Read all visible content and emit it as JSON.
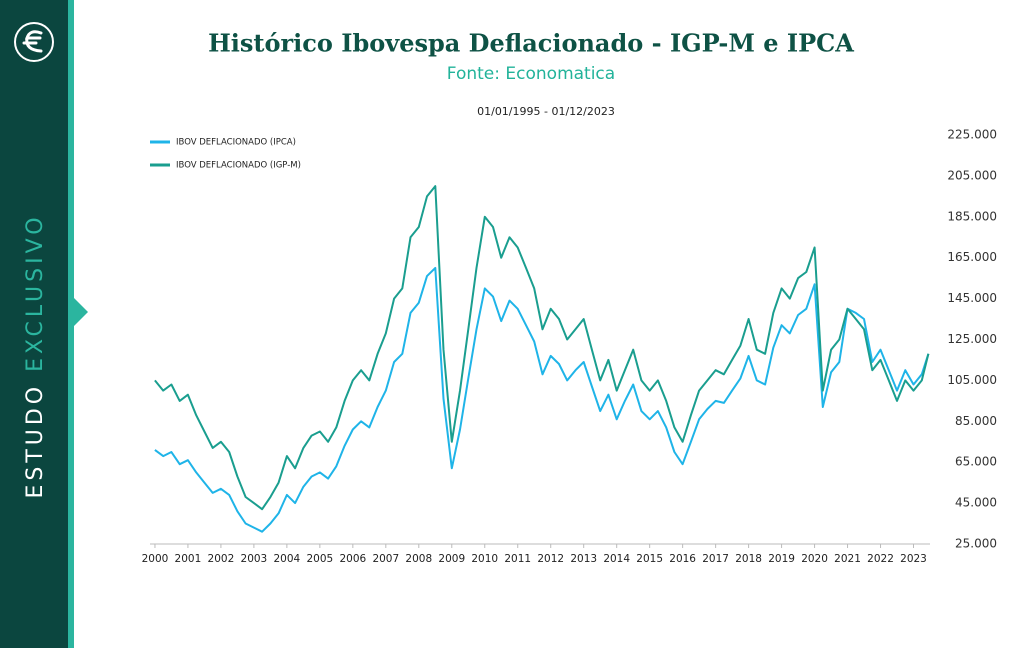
{
  "sidebar": {
    "word_1": "ESTUDO",
    "word_2": "EXCLUSIVO"
  },
  "chart_data": {
    "type": "line",
    "title": "Histórico Ibovespa Deflacionado - IGP-M e IPCA",
    "subtitle": "Fonte: Economatica",
    "period": "01/01/1995 - 01/12/2023",
    "x": [
      2000,
      2000.25,
      2000.5,
      2000.75,
      2001,
      2001.25,
      2001.5,
      2001.75,
      2002,
      2002.25,
      2002.5,
      2002.75,
      2003,
      2003.25,
      2003.5,
      2003.75,
      2004,
      2004.25,
      2004.5,
      2004.75,
      2005,
      2005.25,
      2005.5,
      2005.75,
      2006,
      2006.25,
      2006.5,
      2006.75,
      2007,
      2007.25,
      2007.5,
      2007.75,
      2008,
      2008.25,
      2008.5,
      2008.75,
      2009,
      2009.25,
      2009.5,
      2009.75,
      2010,
      2010.25,
      2010.5,
      2010.75,
      2011,
      2011.25,
      2011.5,
      2011.75,
      2012,
      2012.25,
      2012.5,
      2012.75,
      2013,
      2013.25,
      2013.5,
      2013.75,
      2014,
      2014.25,
      2014.5,
      2014.75,
      2015,
      2015.25,
      2015.5,
      2015.75,
      2016,
      2016.25,
      2016.5,
      2016.75,
      2017,
      2017.25,
      2017.5,
      2017.75,
      2018,
      2018.25,
      2018.5,
      2018.75,
      2019,
      2019.25,
      2019.5,
      2019.75,
      2020,
      2020.25,
      2020.5,
      2020.75,
      2021,
      2021.25,
      2021.5,
      2021.75,
      2022,
      2022.25,
      2022.5,
      2022.75,
      2023,
      2023.25,
      2023.45
    ],
    "series": [
      {
        "name": "IBOV DEFLACIONADO (IPCA)",
        "color": "#1fb4e8",
        "values": [
          71000,
          68000,
          70000,
          64000,
          66000,
          60000,
          55000,
          50000,
          52000,
          49000,
          41000,
          35000,
          33000,
          31000,
          35000,
          40000,
          49000,
          45000,
          53000,
          58000,
          60000,
          57000,
          63000,
          73000,
          81000,
          85000,
          82000,
          92000,
          100000,
          114000,
          118000,
          138000,
          143000,
          156000,
          160000,
          96000,
          62000,
          81000,
          106000,
          130000,
          150000,
          146000,
          134000,
          144000,
          140000,
          132000,
          124000,
          108000,
          117000,
          113000,
          105000,
          110000,
          114000,
          102000,
          90000,
          98000,
          86000,
          95000,
          103000,
          90000,
          86000,
          90000,
          82000,
          70000,
          64000,
          75000,
          86000,
          91000,
          95000,
          94000,
          100000,
          106000,
          117000,
          105000,
          103000,
          121000,
          132000,
          128000,
          137000,
          140000,
          152000,
          92000,
          109000,
          114000,
          140000,
          138000,
          135000,
          114000,
          120000,
          110000,
          100000,
          110000,
          103000,
          108000,
          118000
        ]
      },
      {
        "name": "IBOV DEFLACIONADO (IGP-M)",
        "color": "#1a9e8f",
        "values": [
          105000,
          100000,
          103000,
          95000,
          98000,
          88000,
          80000,
          72000,
          75000,
          70000,
          58000,
          48000,
          45000,
          42000,
          48000,
          55000,
          68000,
          62000,
          72000,
          78000,
          80000,
          75000,
          82000,
          95000,
          105000,
          110000,
          105000,
          118000,
          128000,
          145000,
          150000,
          175000,
          180000,
          195000,
          200000,
          120000,
          75000,
          100000,
          130000,
          160000,
          185000,
          180000,
          165000,
          175000,
          170000,
          160000,
          150000,
          130000,
          140000,
          135000,
          125000,
          130000,
          135000,
          120000,
          105000,
          115000,
          100000,
          110000,
          120000,
          105000,
          100000,
          105000,
          95000,
          82000,
          75000,
          88000,
          100000,
          105000,
          110000,
          108000,
          115000,
          122000,
          135000,
          120000,
          118000,
          138000,
          150000,
          145000,
          155000,
          158000,
          170000,
          100000,
          120000,
          125000,
          140000,
          135000,
          130000,
          110000,
          115000,
          105000,
          95000,
          105000,
          100000,
          105000,
          118000
        ]
      }
    ],
    "xlim": [
      1999.85,
      2023.5
    ],
    "xticks": [
      2000,
      2001,
      2002,
      2003,
      2004,
      2005,
      2006,
      2007,
      2008,
      2009,
      2010,
      2011,
      2012,
      2013,
      2014,
      2015,
      2016,
      2017,
      2018,
      2019,
      2020,
      2021,
      2022,
      2023
    ],
    "ylim": [
      25000,
      225000
    ],
    "yticks": [
      {
        "value": 25000,
        "label": "25.000"
      },
      {
        "value": 45000,
        "label": "45.000"
      },
      {
        "value": 65000,
        "label": "65.000"
      },
      {
        "value": 85000,
        "label": "85.000"
      },
      {
        "value": 105000,
        "label": "105.000"
      },
      {
        "value": 125000,
        "label": "125.000"
      },
      {
        "value": 145000,
        "label": "145.000"
      },
      {
        "value": 165000,
        "label": "165.000"
      },
      {
        "value": 185000,
        "label": "185.000"
      },
      {
        "value": 205000,
        "label": "205.000"
      },
      {
        "value": 225000,
        "label": "225.000"
      }
    ],
    "grid": false,
    "legend": "top-left"
  }
}
